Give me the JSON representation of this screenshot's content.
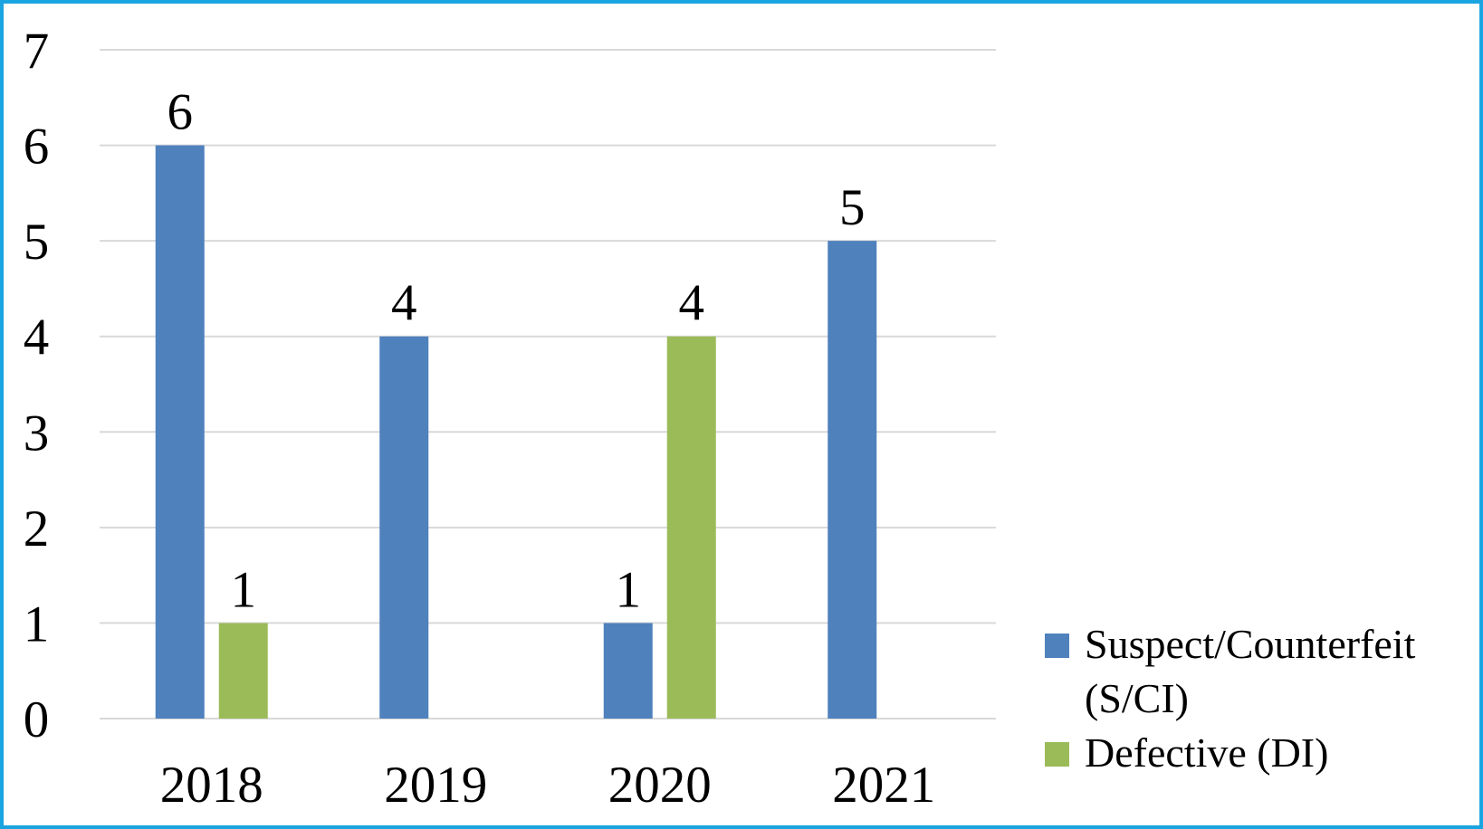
{
  "chart_data": {
    "type": "bar",
    "categories": [
      "2018",
      "2019",
      "2020",
      "2021"
    ],
    "series": [
      {
        "name": "Suspect/Counterfeit (S/CI)",
        "color": "#4f81bd",
        "values": [
          6,
          4,
          1,
          5
        ]
      },
      {
        "name": "Defective (DI)",
        "color": "#9bbb59",
        "values": [
          1,
          null,
          4,
          null
        ]
      }
    ],
    "ylim": [
      0,
      7
    ],
    "yticks": [
      0,
      1,
      2,
      3,
      4,
      5,
      6,
      7
    ],
    "grid": true,
    "legend": "right"
  }
}
